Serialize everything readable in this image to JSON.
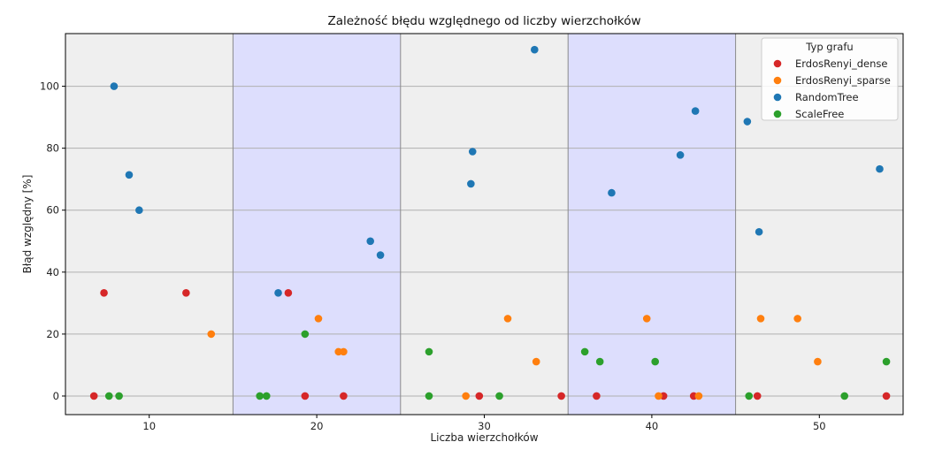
{
  "chart_data": {
    "type": "scatter",
    "title": "Zależność błędu względnego od liczby wierzchołków",
    "xlabel": "Liczba wierzchołków",
    "ylabel": "Błąd względny [%]",
    "xlim": [
      5,
      55
    ],
    "ylim": [
      -6,
      117
    ],
    "xticks": [
      10,
      20,
      30,
      40,
      50
    ],
    "yticks": [
      0,
      20,
      40,
      60,
      80,
      100
    ],
    "grid": "horizontal",
    "background_bands": [
      {
        "x0": 5,
        "x1": 15,
        "color": "#efefef"
      },
      {
        "x0": 15,
        "x1": 25,
        "color": "#dddefd"
      },
      {
        "x0": 25,
        "x1": 35,
        "color": "#efefef"
      },
      {
        "x0": 35,
        "x1": 45,
        "color": "#dddefd"
      },
      {
        "x0": 45,
        "x1": 55,
        "color": "#efefef"
      }
    ],
    "legend": {
      "title": "Typ grafu",
      "placement": "top-right"
    },
    "series": [
      {
        "name": "ErdosRenyi_dense",
        "color": "#d62728",
        "points": [
          [
            6.7,
            0
          ],
          [
            7.3,
            33.3
          ],
          [
            12.2,
            33.3
          ],
          [
            18.3,
            33.3
          ],
          [
            19.3,
            0
          ],
          [
            21.6,
            0
          ],
          [
            29.7,
            0
          ],
          [
            34.6,
            0
          ],
          [
            36.7,
            0
          ],
          [
            40.7,
            0
          ],
          [
            42.5,
            0
          ],
          [
            46.3,
            0
          ],
          [
            54.0,
            0
          ]
        ]
      },
      {
        "name": "ErdosRenyi_sparse",
        "color": "#ff7f0e",
        "points": [
          [
            13.7,
            20
          ],
          [
            20.1,
            25
          ],
          [
            21.3,
            14.3
          ],
          [
            21.6,
            14.3
          ],
          [
            28.9,
            0
          ],
          [
            31.4,
            25
          ],
          [
            33.1,
            11.1
          ],
          [
            39.7,
            25
          ],
          [
            40.4,
            0
          ],
          [
            42.8,
            0
          ],
          [
            46.5,
            25
          ],
          [
            48.7,
            25
          ],
          [
            49.9,
            11.1
          ]
        ]
      },
      {
        "name": "RandomTree",
        "color": "#1f77b4",
        "points": [
          [
            7.9,
            100
          ],
          [
            8.8,
            71.4
          ],
          [
            9.4,
            60
          ],
          [
            17.7,
            33.3
          ],
          [
            23.2,
            50
          ],
          [
            23.8,
            45.5
          ],
          [
            29.2,
            68.5
          ],
          [
            29.3,
            78.9
          ],
          [
            33.0,
            111.8
          ],
          [
            37.6,
            65.6
          ],
          [
            41.7,
            77.8
          ],
          [
            42.6,
            92
          ],
          [
            45.7,
            88.6
          ],
          [
            46.4,
            53
          ],
          [
            53.6,
            73.3
          ]
        ]
      },
      {
        "name": "ScaleFree",
        "color": "#2ca02c",
        "points": [
          [
            7.6,
            0
          ],
          [
            8.2,
            0
          ],
          [
            16.6,
            0
          ],
          [
            17.0,
            0
          ],
          [
            19.3,
            20
          ],
          [
            26.7,
            14.3
          ],
          [
            26.7,
            0
          ],
          [
            30.9,
            0
          ],
          [
            36.0,
            14.3
          ],
          [
            36.9,
            11.1
          ],
          [
            40.2,
            11.1
          ],
          [
            45.8,
            0
          ],
          [
            51.5,
            0
          ],
          [
            54.0,
            11.1
          ]
        ]
      }
    ]
  }
}
